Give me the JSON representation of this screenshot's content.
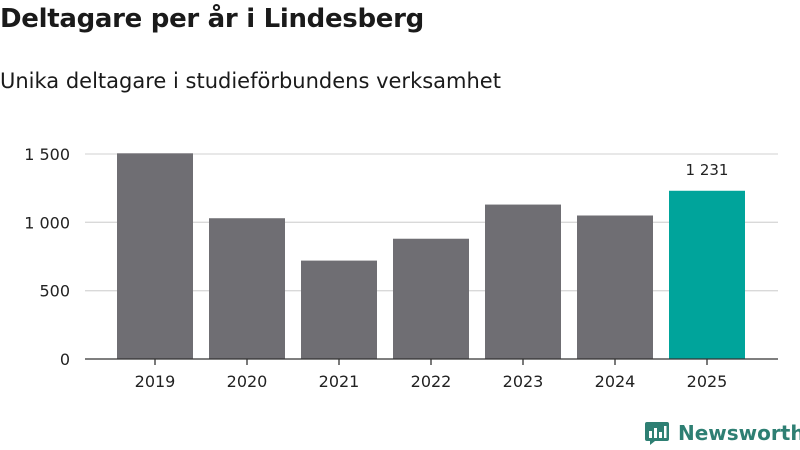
{
  "header": {
    "title": "Deltagare per år i Lindesberg",
    "subtitle": "Unika deltagare i studieförbundens verksamhet"
  },
  "brand": {
    "name": "Newsworthy",
    "logo_icon": "newsworthy-logo-icon",
    "color": "#2e7f73"
  },
  "colors": {
    "bar_default": "#6f6e73",
    "bar_highlight": "#00a49b",
    "grid": "#d9d9d9",
    "axis": "#333333"
  },
  "chart_data": {
    "type": "bar",
    "title": "Deltagare per år i Lindesberg",
    "subtitle": "Unika deltagare i studieförbundens verksamhet",
    "xlabel": "",
    "ylabel": "",
    "categories": [
      "2019",
      "2020",
      "2021",
      "2022",
      "2023",
      "2024",
      "2025"
    ],
    "values": [
      1505,
      1030,
      720,
      880,
      1130,
      1050,
      1231
    ],
    "highlight_index": 6,
    "data_labels": [
      {
        "index": 6,
        "text": "1 231"
      }
    ],
    "ylim": [
      0,
      1500
    ],
    "yticks": [
      {
        "value": 0,
        "label": "0"
      },
      {
        "value": 500,
        "label": "500"
      },
      {
        "value": 1000,
        "label": "1 000"
      },
      {
        "value": 1500,
        "label": "1 500"
      }
    ],
    "grid": true,
    "legend": "none"
  }
}
